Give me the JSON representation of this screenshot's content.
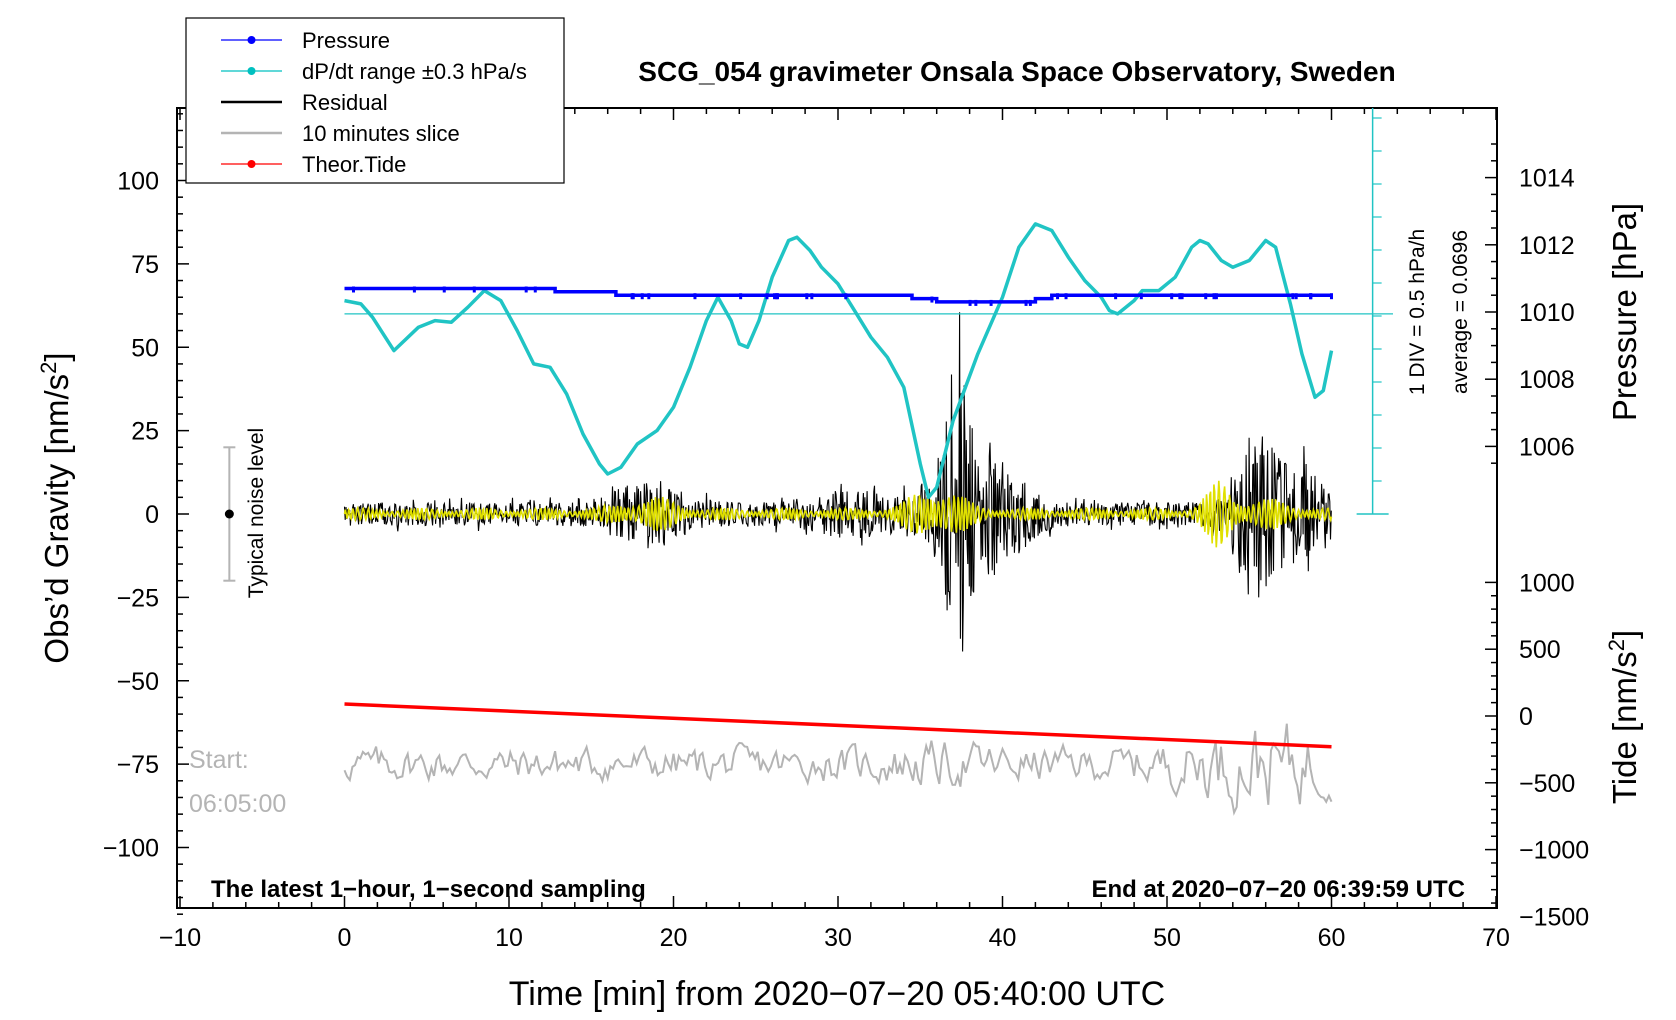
{
  "chart_data": {
    "type": "line",
    "title": "SCG_054 gravimeter Onsala Space Observatory, Sweden",
    "xlabel": "Time [min] from 2020−07−20 05:40:00 UTC",
    "ylabel_left": "Obs’d Gravity [nm/s",
    "ylabel_left_sup": "2",
    "ylabel_left_end": "]",
    "ylabel_pressure": "Pressure [hPa]",
    "ylabel_tide": "Tide [nm/s",
    "ylabel_tide_sup": "2",
    "ylabel_tide_end": "]",
    "xlim": [
      -10,
      70
    ],
    "ylim": [
      -120,
      120
    ],
    "pressure_ylim": [
      1004,
      1014
    ],
    "tide_ylim": [
      -1500,
      1000
    ],
    "x_ticks": [
      {
        "v": -10,
        "label": "−10"
      },
      {
        "v": 0,
        "label": "0"
      },
      {
        "v": 10,
        "label": "10"
      },
      {
        "v": 20,
        "label": "20"
      },
      {
        "v": 30,
        "label": "30"
      },
      {
        "v": 40,
        "label": "40"
      },
      {
        "v": 50,
        "label": "50"
      },
      {
        "v": 60,
        "label": "60"
      },
      {
        "v": 70,
        "label": "70"
      }
    ],
    "y_ticks": [
      {
        "v": 100,
        "label": "100"
      },
      {
        "v": 75,
        "label": "75"
      },
      {
        "v": 50,
        "label": "50"
      },
      {
        "v": 25,
        "label": "25"
      },
      {
        "v": 0,
        "label": "0"
      },
      {
        "v": -25,
        "label": "−25"
      },
      {
        "v": -50,
        "label": "−50"
      },
      {
        "v": -75,
        "label": "−75"
      },
      {
        "v": -100,
        "label": "−100"
      }
    ],
    "pressure_ticks": [
      {
        "v": 1014,
        "label": "1014"
      },
      {
        "v": 1012,
        "label": "1012"
      },
      {
        "v": 1010,
        "label": "1010"
      },
      {
        "v": 1008,
        "label": "1008"
      },
      {
        "v": 1006,
        "label": "1006"
      }
    ],
    "tide_ticks": [
      {
        "v": 1000,
        "label": "1000"
      },
      {
        "v": 500,
        "label": "500"
      },
      {
        "v": 0,
        "label": "0"
      },
      {
        "v": -500,
        "label": "−500"
      },
      {
        "v": -1000,
        "label": "−1000"
      },
      {
        "v": -1500,
        "label": "−1500"
      }
    ],
    "legend": [
      {
        "name": "Pressure",
        "color": "#0000ff",
        "marker": true
      },
      {
        "name": "dP/dt range ±0.3 hPa/s",
        "color": "#00c0c0",
        "marker": true
      },
      {
        "name": "Residual",
        "color": "#000000",
        "marker": false
      },
      {
        "name": "10 minutes slice",
        "color": "#b4b4b4",
        "marker": false
      },
      {
        "name": "Theor.Tide",
        "color": "#ff0000",
        "marker": true
      }
    ],
    "series": [
      {
        "name": "Pressure",
        "axis": "pressure",
        "color": "#0000ff",
        "points": [
          [
            0,
            1010.7
          ],
          [
            12.8,
            1010.7
          ],
          [
            12.8,
            1010.6
          ],
          [
            16.5,
            1010.6
          ],
          [
            16.5,
            1010.5
          ],
          [
            34.5,
            1010.5
          ],
          [
            34.5,
            1010.4
          ],
          [
            36,
            1010.4
          ],
          [
            36,
            1010.3
          ],
          [
            42,
            1010.3
          ],
          [
            42,
            1010.4
          ],
          [
            43,
            1010.4
          ],
          [
            43,
            1010.5
          ],
          [
            60,
            1010.5
          ]
        ]
      },
      {
        "name": "dP/dt",
        "axis": "gravity",
        "color": "#20c4c4",
        "points": [
          [
            0,
            64
          ],
          [
            1,
            63
          ],
          [
            1.7,
            59
          ],
          [
            3,
            49
          ],
          [
            4.5,
            56
          ],
          [
            5.5,
            58
          ],
          [
            6.5,
            57.5
          ],
          [
            7.5,
            62
          ],
          [
            8.5,
            67
          ],
          [
            9.5,
            64
          ],
          [
            10.5,
            55
          ],
          [
            11.5,
            45
          ],
          [
            12.5,
            44
          ],
          [
            13.5,
            36
          ],
          [
            14.5,
            24
          ],
          [
            15.5,
            15
          ],
          [
            16,
            12
          ],
          [
            16.8,
            14
          ],
          [
            17.8,
            21
          ],
          [
            19,
            25
          ],
          [
            20,
            32
          ],
          [
            21,
            44
          ],
          [
            22,
            58
          ],
          [
            22.7,
            65
          ],
          [
            23.5,
            58
          ],
          [
            24,
            51
          ],
          [
            24.5,
            50
          ],
          [
            25.2,
            58
          ],
          [
            26,
            71
          ],
          [
            27,
            82
          ],
          [
            27.5,
            83
          ],
          [
            28.3,
            79
          ],
          [
            29,
            74
          ],
          [
            30,
            69
          ],
          [
            31,
            61
          ],
          [
            32,
            53
          ],
          [
            33,
            47
          ],
          [
            34,
            38
          ],
          [
            35,
            15
          ],
          [
            35.5,
            5
          ],
          [
            36,
            8
          ],
          [
            37,
            28
          ],
          [
            38.5,
            48
          ],
          [
            40,
            65
          ],
          [
            41,
            80
          ],
          [
            42,
            87
          ],
          [
            43,
            85
          ],
          [
            44,
            77
          ],
          [
            45,
            70
          ],
          [
            46,
            65
          ],
          [
            46.5,
            61
          ],
          [
            47,
            60
          ],
          [
            48,
            64
          ],
          [
            48.5,
            67
          ],
          [
            49.5,
            67
          ],
          [
            50.5,
            71
          ],
          [
            51.5,
            80
          ],
          [
            52,
            82
          ],
          [
            52.5,
            81
          ],
          [
            53.3,
            76
          ],
          [
            54,
            74
          ],
          [
            55,
            76
          ],
          [
            55.5,
            79
          ],
          [
            56,
            82
          ],
          [
            56.6,
            80
          ],
          [
            57.5,
            63
          ],
          [
            58.2,
            48
          ],
          [
            59,
            35
          ],
          [
            59.5,
            37
          ],
          [
            60,
            49
          ]
        ]
      },
      {
        "name": "Theor.Tide",
        "axis": "tide",
        "color": "#ff0000",
        "points": [
          [
            0,
            90
          ],
          [
            60,
            -230
          ]
        ]
      }
    ],
    "noise_level": {
      "label": "Typical noise level",
      "x": -7,
      "range": [
        -20,
        20
      ]
    },
    "average_text": "average = 0.0696",
    "div_text": "1 DIV = 0.5 hPa/h",
    "start_label": "Start:",
    "start_time": "06:05:00",
    "note_left": "The latest 1−hour, 1−second sampling",
    "note_right": "End at 2020−07−20 06:39:59 UTC"
  }
}
